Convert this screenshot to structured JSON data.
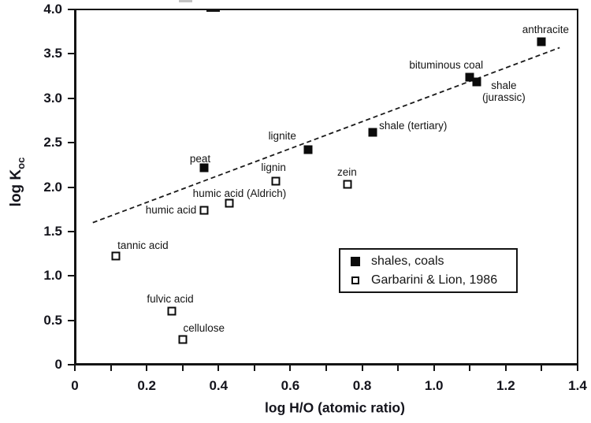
{
  "chart_data": {
    "type": "scatter",
    "title": "",
    "xlabel": "log H/O (atomic ratio)",
    "ylabel": "log K_oc",
    "ylabel_parts": {
      "main": "log K",
      "sub": "oc"
    },
    "xlim": [
      0,
      1.4
    ],
    "ylim": [
      0,
      4.0
    ],
    "grid": false,
    "x_major_ticks": [
      0,
      0.2,
      0.4,
      0.6,
      0.8,
      1.0,
      1.2,
      1.4
    ],
    "x_major_tick_labels": [
      "0",
      "0.2",
      "0.4",
      "0.6",
      "0.8",
      "1.0",
      "1.2",
      "1.4"
    ],
    "x_minor_tick_step": 0.1,
    "y_major_ticks": [
      0,
      0.5,
      1.0,
      1.5,
      2.0,
      2.5,
      3.0,
      3.5,
      4.0
    ],
    "y_major_tick_labels": [
      "0",
      "0.5",
      "1.0",
      "1.5",
      "2.0",
      "2.5",
      "3.0",
      "3.5",
      "4.0"
    ],
    "legend": {
      "position": "inside lower-right",
      "entries": [
        {
          "marker": "filled-square",
          "label": "shales, coals"
        },
        {
          "marker": "open-square",
          "label": "Garbarini & Lion, 1986"
        }
      ]
    },
    "trend_line": {
      "style": "dashed",
      "points": [
        {
          "x": 0.05,
          "y": 1.6
        },
        {
          "x": 1.35,
          "y": 3.57
        }
      ]
    },
    "series": [
      {
        "name": "shales, coals",
        "marker": "filled-square",
        "points": [
          {
            "label": "peat",
            "x": 0.36,
            "y": 2.22,
            "label_dx": -5,
            "label_dy": -11
          },
          {
            "label": "lignite",
            "x": 0.65,
            "y": 2.42,
            "label_dx": -33,
            "label_dy": -17
          },
          {
            "label": "shale (tertiary)",
            "x": 0.83,
            "y": 2.62,
            "label_dx": 51,
            "label_dy": -8
          },
          {
            "label": "bituminous coal",
            "x": 1.1,
            "y": 3.24,
            "label_dx": -30,
            "label_dy": -15
          },
          {
            "label": "shale\n(jurassic)",
            "x": 1.12,
            "y": 3.18,
            "label_dx": 34,
            "label_dy": 12
          },
          {
            "label": "anthracite",
            "x": 1.3,
            "y": 3.64,
            "label_dx": 5,
            "label_dy": -15
          }
        ]
      },
      {
        "name": "Garbarini & Lion, 1986",
        "marker": "open-square",
        "points": [
          {
            "label": "tannic acid",
            "x": 0.115,
            "y": 1.22,
            "label_dx": 34,
            "label_dy": -13
          },
          {
            "label": "fulvic acid",
            "x": 0.27,
            "y": 0.6,
            "label_dx": -2,
            "label_dy": -15
          },
          {
            "label": "cellulose",
            "x": 0.3,
            "y": 0.28,
            "label_dx": 27,
            "label_dy": -14
          },
          {
            "label": "humic acid",
            "x": 0.36,
            "y": 1.74,
            "label_dx": -42,
            "label_dy": 0
          },
          {
            "label": "humic acid (Aldrich)",
            "x": 0.43,
            "y": 1.82,
            "label_dx": 13,
            "label_dy": -12
          },
          {
            "label": "lignin",
            "x": 0.56,
            "y": 2.07,
            "label_dx": -3,
            "label_dy": -17
          },
          {
            "label": "zein",
            "x": 0.76,
            "y": 2.03,
            "label_dx": -1,
            "label_dy": -15
          }
        ]
      }
    ]
  },
  "colors": {
    "ink": "#14141c",
    "marker": "#0b0b0b",
    "frame": "#141414",
    "background": "#ffffff",
    "trend_line": "#1a1a1a"
  }
}
